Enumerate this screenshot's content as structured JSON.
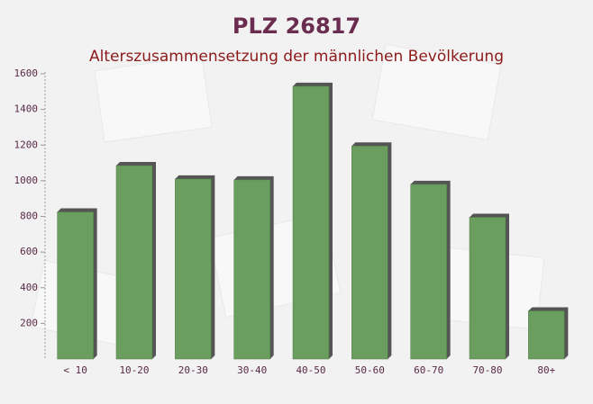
{
  "chart_data": {
    "type": "bar",
    "title": "PLZ 26817",
    "subtitle": "Alterszusammensetzung der männlichen Bevölkerung",
    "categories": [
      "< 10",
      "10-20",
      "20-30",
      "30-40",
      "40-50",
      "50-60",
      "60-70",
      "70-80",
      "80+"
    ],
    "values": [
      825,
      1085,
      1010,
      1005,
      1530,
      1195,
      980,
      795,
      270
    ],
    "color": "#6a9e5e",
    "ylim": [
      0,
      1600
    ],
    "yticks": [
      200,
      400,
      600,
      800,
      1000,
      1200,
      1400,
      1600
    ],
    "grid": false
  }
}
